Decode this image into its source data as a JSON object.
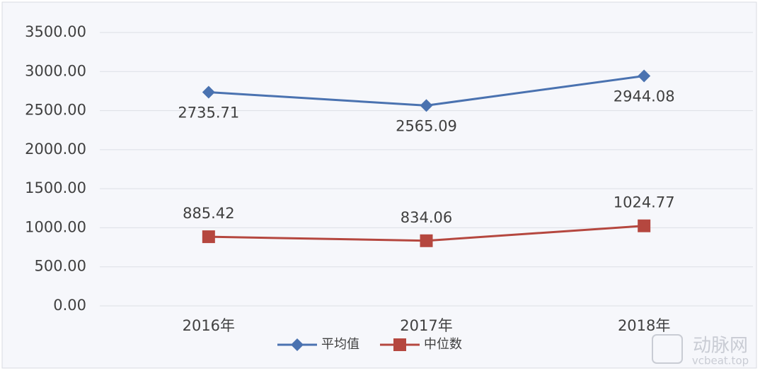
{
  "chart_data": {
    "type": "line",
    "categories": [
      "2016年",
      "2017年",
      "2018年"
    ],
    "series": [
      {
        "name": "平均值",
        "color": "#4a72b0",
        "marker": "diamond",
        "values": [
          2735.71,
          2565.09,
          2944.08
        ]
      },
      {
        "name": "中位数",
        "color": "#b5473f",
        "marker": "square",
        "values": [
          885.42,
          834.06,
          1024.77
        ]
      }
    ],
    "ylim": [
      0,
      3500
    ],
    "yticks": [
      {
        "value": 0,
        "label": "0.00"
      },
      {
        "value": 500,
        "label": "500.00"
      },
      {
        "value": 1000,
        "label": "1000.00"
      },
      {
        "value": 1500,
        "label": "1500.00"
      },
      {
        "value": 2000,
        "label": "2000.00"
      },
      {
        "value": 2500,
        "label": "2500.00"
      },
      {
        "value": 3000,
        "label": "3000.00"
      },
      {
        "value": 3500,
        "label": "3500.00"
      }
    ],
    "grid": true,
    "legend": "bottom"
  },
  "watermark": {
    "name": "动脉网",
    "url": "vcbeat.top"
  }
}
